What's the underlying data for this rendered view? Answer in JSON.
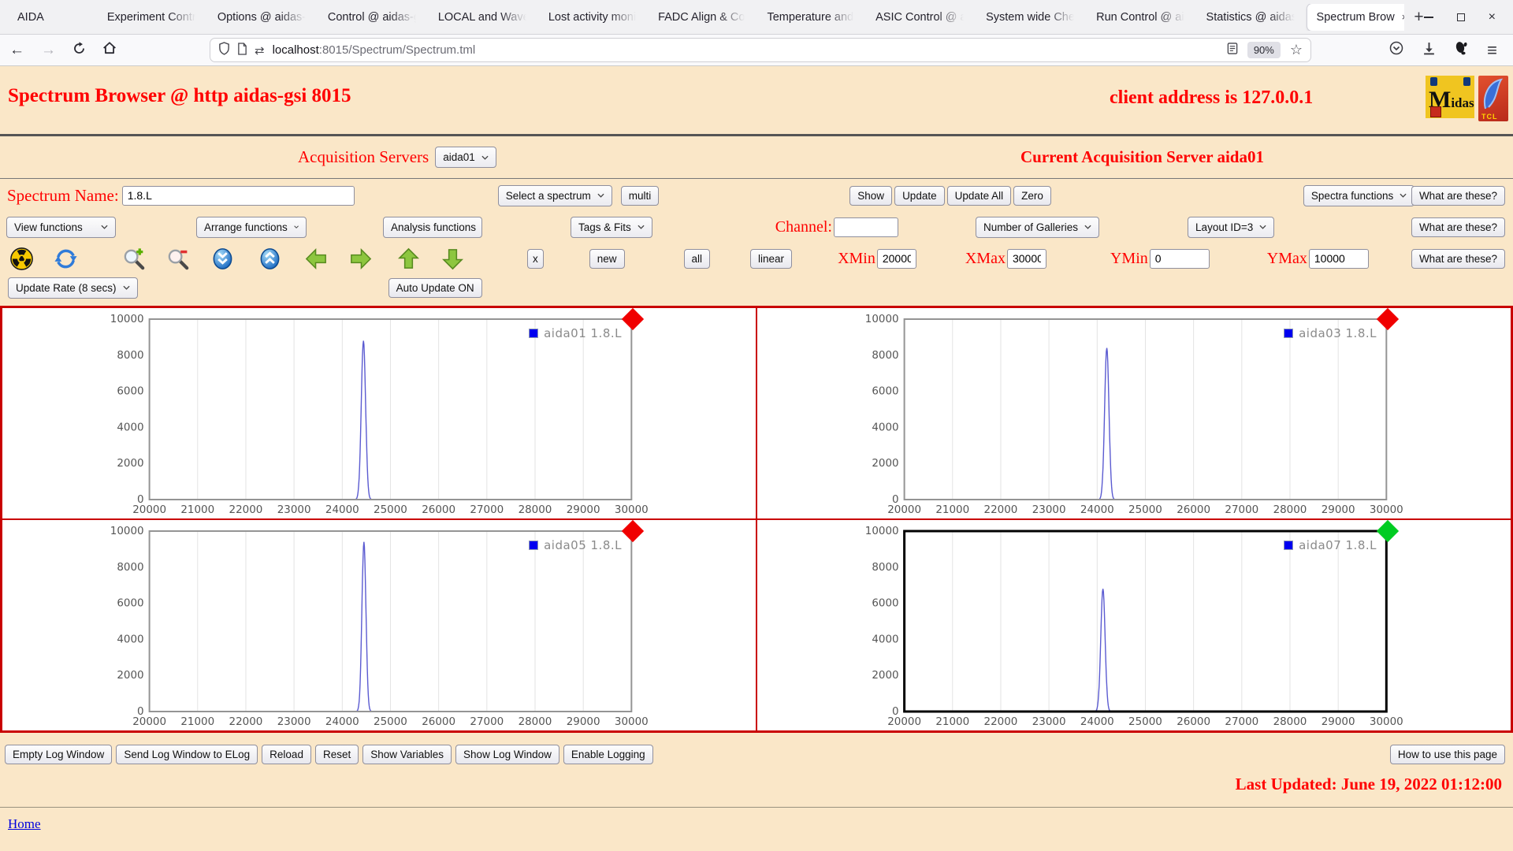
{
  "browser": {
    "tabs": [
      {
        "label": "AIDA",
        "active": false
      },
      {
        "label": "Experiment Contr",
        "active": false
      },
      {
        "label": "Options @ aidas-",
        "active": false
      },
      {
        "label": "Control @ aidas-g",
        "active": false
      },
      {
        "label": "LOCAL and Wave",
        "active": false
      },
      {
        "label": "Lost activity moni",
        "active": false
      },
      {
        "label": "FADC Align & Co",
        "active": false
      },
      {
        "label": "Temperature and",
        "active": false
      },
      {
        "label": "ASIC Control @ a",
        "active": false
      },
      {
        "label": "System wide Che",
        "active": false
      },
      {
        "label": "Run Control @ ai",
        "active": false
      },
      {
        "label": "Statistics @ aidas",
        "active": false
      },
      {
        "label": "Spectrum Brow",
        "active": true
      }
    ],
    "new_tab_glyph": "+",
    "window_controls": [
      "minimize",
      "maximize",
      "close"
    ],
    "nav": {
      "url_domain": "localhost",
      "url_path": ":8015/Spectrum/Spectrum.tml",
      "zoom": "90%"
    }
  },
  "header": {
    "title": "Spectrum Browser @ http aidas-gsi 8015",
    "client": "client address is 127.0.0.1",
    "midas_m": "M",
    "midas_rest": "idas",
    "tcl_text": "TCL"
  },
  "acquisition": {
    "label": "Acquisition Servers",
    "value": "aida01",
    "current": "Current Acquisition Server aida01"
  },
  "controls": {
    "what_are_these": "What are these?",
    "row2": {
      "name_label": "Spectrum Name:",
      "name_value": "1.8.L",
      "select_spectrum": "Select a spectrum",
      "multi": "multi",
      "show": "Show",
      "update": "Update",
      "update_all": "Update All",
      "zero": "Zero",
      "spectra_functions": "Spectra functions"
    },
    "row3": {
      "view": "View functions",
      "arrange": "Arrange functions",
      "analysis": "Analysis functions",
      "tags": "Tags & Fits",
      "channel_label": "Channel:",
      "channel_value": "",
      "galleries": "Number of Galleries",
      "layout": "Layout ID=3"
    },
    "row4": {
      "icons": [
        "radiation",
        "refresh",
        "zoom-in",
        "zoom-out",
        "scroll-down",
        "scroll-up",
        "arrow-left",
        "arrow-right",
        "arrow-up",
        "arrow-down"
      ],
      "x_label": "x",
      "new_label": "new",
      "all_label": "all",
      "linear_label": "linear",
      "xmin_label": "XMin",
      "xmin": "20000",
      "xmax_label": "XMax",
      "xmax": "30000",
      "ymin_label": "YMin",
      "ymin": "0",
      "ymax_label": "YMax",
      "ymax": "10000"
    },
    "row5": {
      "update_rate": "Update Rate (8 secs)",
      "auto_update": "Auto Update ON"
    }
  },
  "chart_data": {
    "type": "line",
    "x_range": [
      20000,
      30000
    ],
    "y_range": [
      0,
      10000
    ],
    "x_tick_step": 1000,
    "y_tick_step": 2000,
    "grid": "vertical-only",
    "legend_position": "top-right",
    "line_color": "#5b5bd1",
    "panels": [
      {
        "legend": "aida01 1.8.L",
        "peak_center": 24440,
        "peak_height": 8800,
        "peak_sigma": 45,
        "indicator_color": "#f00000",
        "selected": false
      },
      {
        "legend": "aida03 1.8.L",
        "peak_center": 24200,
        "peak_height": 8400,
        "peak_sigma": 45,
        "indicator_color": "#f00000",
        "selected": false
      },
      {
        "legend": "aida05 1.8.L",
        "peak_center": 24450,
        "peak_height": 9400,
        "peak_sigma": 42,
        "indicator_color": "#f00000",
        "selected": false
      },
      {
        "legend": "aida07 1.8.L",
        "peak_center": 24120,
        "peak_height": 6800,
        "peak_sigma": 45,
        "indicator_color": "#00cc22",
        "selected": true
      }
    ]
  },
  "footer": {
    "buttons": [
      "Empty Log Window",
      "Send Log Window to ELog",
      "Reload",
      "Reset",
      "Show Variables",
      "Show Log Window",
      "Enable Logging"
    ],
    "help": "How to use this page",
    "last_updated": "Last Updated: June 19, 2022 01:12:00",
    "home": "Home"
  },
  "colors": {
    "page_bg": "#fae7c8",
    "accent_red": "#ff0000",
    "grid_border": "#c90000"
  }
}
